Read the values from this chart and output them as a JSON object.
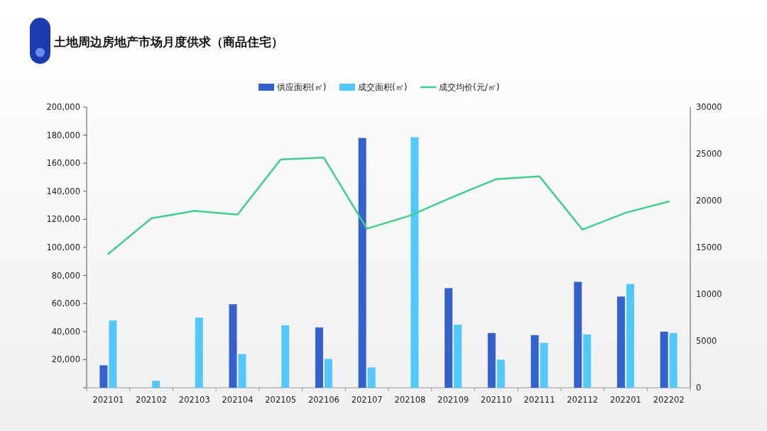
{
  "chart_data": {
    "type": "bar",
    "title": "土地周边房地产市场月度供求（商品住宅）",
    "categories": [
      "202101",
      "202102",
      "202103",
      "202104",
      "202105",
      "202106",
      "202107",
      "202108",
      "202109",
      "202110",
      "202111",
      "202112",
      "202201",
      "202202"
    ],
    "series": [
      {
        "name": "供应面积(㎡)",
        "color": "#3461cc",
        "values": [
          16000,
          null,
          null,
          59500,
          null,
          43000,
          178000,
          null,
          71000,
          39000,
          37500,
          75500,
          65000,
          40000
        ]
      },
      {
        "name": "成交面积(㎡)",
        "color": "#52c8fe",
        "values": [
          48000,
          5000,
          50000,
          24000,
          44500,
          20500,
          14500,
          178500,
          45000,
          20000,
          32000,
          38000,
          74000,
          39000
        ]
      },
      {
        "name": "成交均价(元/㎡)",
        "type": "line",
        "axis": "y2",
        "color": "#3ecf8e",
        "values": [
          14300,
          18100,
          18900,
          18500,
          24400,
          24600,
          17000,
          18400,
          20400,
          22300,
          22600,
          16900,
          18700,
          19900
        ]
      }
    ],
    "ylim": [
      0,
      200000
    ],
    "yticks": [
      {
        "value": 0,
        "label": null
      },
      {
        "value": 20000,
        "label": "20,000"
      },
      {
        "value": 40000,
        "label": "40,000"
      },
      {
        "value": 60000,
        "label": "60,000"
      },
      {
        "value": 80000,
        "label": "80,000"
      },
      {
        "value": 100000,
        "label": "100,000"
      },
      {
        "value": 120000,
        "label": "120,000"
      },
      {
        "value": 140000,
        "label": "140,000"
      },
      {
        "value": 160000,
        "label": "160,000"
      },
      {
        "value": 180000,
        "label": "180,000"
      },
      {
        "value": 200000,
        "label": "200,000"
      }
    ],
    "y2lim": [
      0,
      30000
    ],
    "y2ticks": [
      0,
      5000,
      10000,
      15000,
      20000,
      25000,
      30000
    ],
    "legend": "top"
  }
}
